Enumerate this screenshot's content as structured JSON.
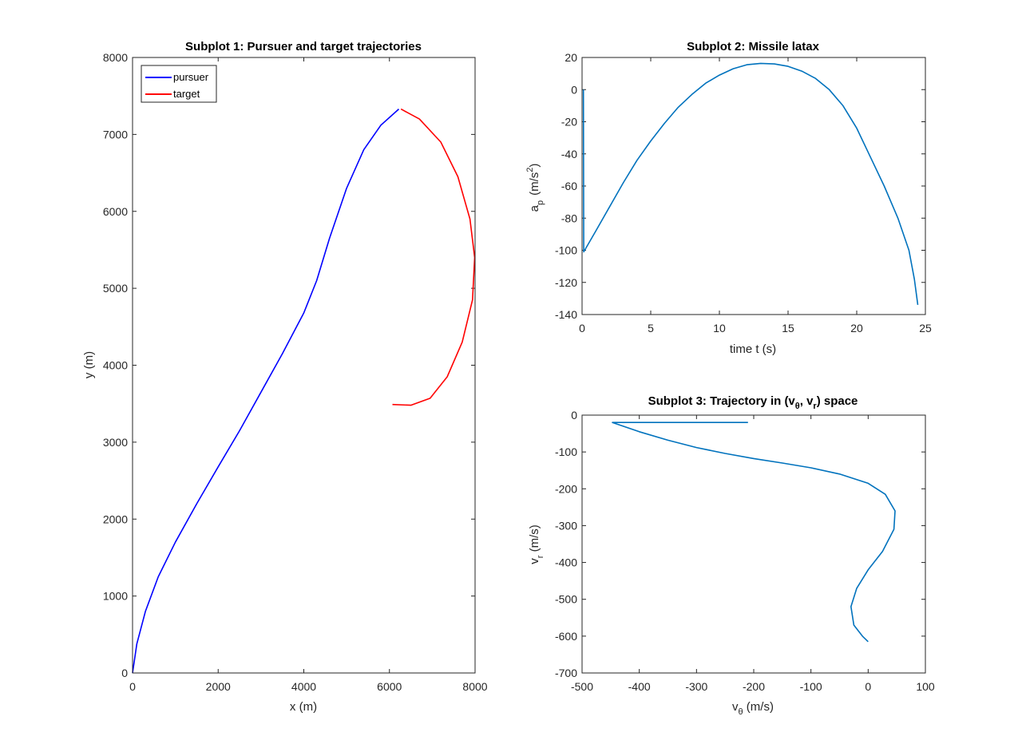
{
  "chart_data": [
    {
      "type": "line",
      "title": "Subplot 1: Pursuer and target trajectories",
      "xlabel": "x (m)",
      "ylabel": "y (m)",
      "xlim": [
        0,
        8000
      ],
      "ylim": [
        0,
        8000
      ],
      "x_ticks": [
        0,
        2000,
        4000,
        6000,
        8000
      ],
      "y_ticks": [
        0,
        1000,
        2000,
        3000,
        4000,
        5000,
        6000,
        7000,
        8000
      ],
      "x_tick_labels": [
        "0",
        "2000",
        "4000",
        "6000",
        "8000"
      ],
      "y_tick_labels": [
        "0",
        "1000",
        "2000",
        "3000",
        "4000",
        "5000",
        "6000",
        "7000",
        "8000"
      ],
      "grid": false,
      "legend": {
        "position": "top-left",
        "entries": [
          "pursuer",
          "target"
        ]
      },
      "series": [
        {
          "name": "pursuer",
          "color": "#0000ff",
          "points": [
            [
              0,
              0
            ],
            [
              100,
              380
            ],
            [
              300,
              800
            ],
            [
              600,
              1250
            ],
            [
              1000,
              1700
            ],
            [
              1500,
              2200
            ],
            [
              2000,
              2680
            ],
            [
              2500,
              3150
            ],
            [
              3000,
              3650
            ],
            [
              3500,
              4150
            ],
            [
              4000,
              4680
            ],
            [
              4300,
              5100
            ],
            [
              4600,
              5650
            ],
            [
              5000,
              6300
            ],
            [
              5400,
              6800
            ],
            [
              5800,
              7120
            ],
            [
              6220,
              7330
            ]
          ]
        },
        {
          "name": "target",
          "color": "#ff0000",
          "points": [
            [
              6270,
              7330
            ],
            [
              6700,
              7200
            ],
            [
              7200,
              6900
            ],
            [
              7600,
              6450
            ],
            [
              7880,
              5900
            ],
            [
              7990,
              5400
            ],
            [
              7940,
              4850
            ],
            [
              7700,
              4300
            ],
            [
              7350,
              3850
            ],
            [
              6950,
              3570
            ],
            [
              6500,
              3480
            ],
            [
              6070,
              3490
            ]
          ]
        }
      ]
    },
    {
      "type": "line",
      "title": "Subplot 2: Missile latax",
      "xlabel": "time t (s)",
      "ylabel_main": "a",
      "ylabel_sub": "p",
      "ylabel_unit": "(m/s",
      "ylabel_sup": "2",
      "ylabel_close": ")",
      "xlim": [
        0,
        25
      ],
      "ylim": [
        -140,
        20
      ],
      "x_ticks": [
        0,
        5,
        10,
        15,
        20,
        25
      ],
      "y_ticks": [
        -140,
        -120,
        -100,
        -80,
        -60,
        -40,
        -20,
        0,
        20
      ],
      "x_tick_labels": [
        "0",
        "5",
        "10",
        "15",
        "20",
        "25"
      ],
      "y_tick_labels": [
        "-140",
        "-120",
        "-100",
        "-80",
        "-60",
        "-40",
        "-20",
        "0",
        "20"
      ],
      "grid": false,
      "series": [
        {
          "color": "#0072bd",
          "points": [
            [
              0.1,
              0
            ],
            [
              0.12,
              -101
            ],
            [
              1,
              -88
            ],
            [
              2,
              -73
            ],
            [
              3,
              -58
            ],
            [
              4,
              -44
            ],
            [
              5,
              -32
            ],
            [
              6,
              -21
            ],
            [
              7,
              -11
            ],
            [
              8,
              -3
            ],
            [
              9,
              4
            ],
            [
              10,
              9
            ],
            [
              11,
              13
            ],
            [
              12,
              15.5
            ],
            [
              13,
              16.3
            ],
            [
              14,
              16
            ],
            [
              15,
              14.5
            ],
            [
              16,
              11.5
            ],
            [
              17,
              7
            ],
            [
              18,
              0
            ],
            [
              19,
              -10
            ],
            [
              20,
              -24
            ],
            [
              21,
              -42
            ],
            [
              22,
              -60
            ],
            [
              23,
              -80
            ],
            [
              23.8,
              -100
            ],
            [
              24.2,
              -118
            ],
            [
              24.45,
              -134
            ]
          ]
        }
      ]
    },
    {
      "type": "line",
      "title_main": "Subplot 3: Trajectory in (v",
      "title_sub1": "θ",
      "title_mid": ", v",
      "title_sub2": "r",
      "title_end": ") space",
      "xlabel_main": "v",
      "xlabel_sub": "θ",
      "xlabel_unit": " (m/s)",
      "ylabel_main": "v",
      "ylabel_sub": "r",
      "ylabel_unit": " (m/s)",
      "xlim": [
        -500,
        100
      ],
      "ylim": [
        -700,
        0
      ],
      "x_ticks": [
        -500,
        -400,
        -300,
        -200,
        -100,
        0,
        100
      ],
      "y_ticks": [
        -700,
        -600,
        -500,
        -400,
        -300,
        -200,
        -100,
        0
      ],
      "x_tick_labels": [
        "-500",
        "-400",
        "-300",
        "-200",
        "-100",
        "0",
        "100"
      ],
      "y_tick_labels": [
        "-700",
        "-600",
        "-500",
        "-400",
        "-300",
        "-200",
        "-100",
        "0"
      ],
      "grid": false,
      "series": [
        {
          "color": "#0072bd",
          "points": [
            [
              -210,
              -20
            ],
            [
              -447,
              -20
            ],
            [
              -400,
              -45
            ],
            [
              -350,
              -68
            ],
            [
              -300,
              -88
            ],
            [
              -250,
              -104
            ],
            [
              -200,
              -118
            ],
            [
              -150,
              -130
            ],
            [
              -100,
              -143
            ],
            [
              -50,
              -160
            ],
            [
              0,
              -185
            ],
            [
              30,
              -215
            ],
            [
              47,
              -260
            ],
            [
              45,
              -310
            ],
            [
              25,
              -370
            ],
            [
              0,
              -420
            ],
            [
              -20,
              -470
            ],
            [
              -30,
              -520
            ],
            [
              -25,
              -570
            ],
            [
              -10,
              -600
            ],
            [
              0,
              -615
            ]
          ]
        }
      ]
    }
  ]
}
